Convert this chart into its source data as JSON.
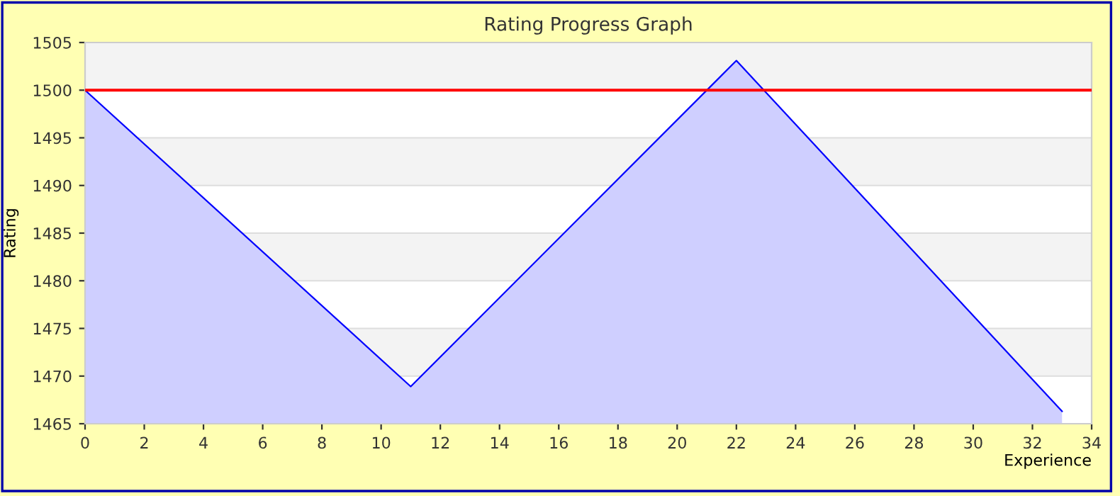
{
  "chart_data": {
    "type": "area",
    "title": "Rating Progress Graph",
    "xlabel": "Experience",
    "ylabel": "Rating",
    "x": [
      0,
      11,
      22,
      33
    ],
    "series": [
      {
        "color": "#0000ff",
        "values": [
          1500,
          1468.9,
          1503.1,
          1466.3
        ]
      }
    ],
    "xlim": [
      0,
      34
    ],
    "xticks": [
      0,
      2,
      4,
      6,
      8,
      10,
      12,
      14,
      16,
      18,
      20,
      22,
      24,
      26,
      28,
      30,
      32,
      34
    ],
    "ylim": [
      1465,
      1505
    ],
    "yticks": [
      1465,
      1470,
      1475,
      1480,
      1485,
      1490,
      1495,
      1500,
      1505
    ],
    "ref_lines": [
      {
        "axis": "y",
        "value": 1500,
        "color": "#ff0000"
      }
    ],
    "grid": "y",
    "legend": false
  }
}
